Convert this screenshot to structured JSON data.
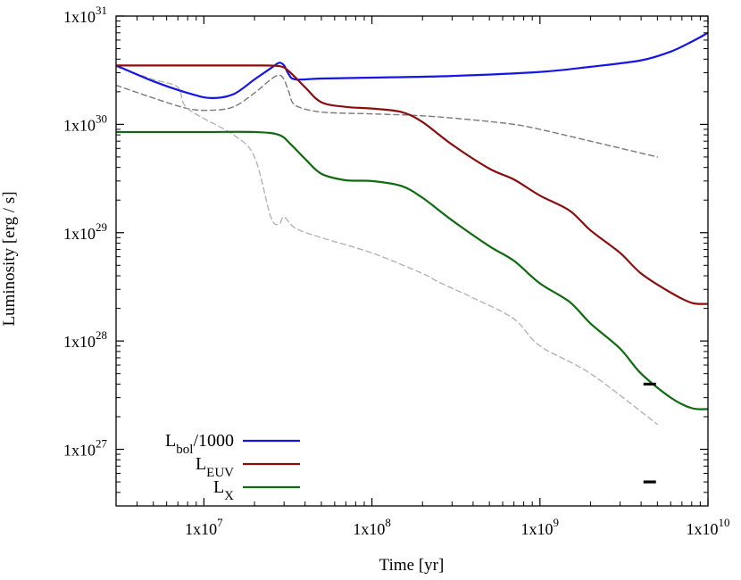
{
  "chart_data": {
    "type": "line",
    "title": "",
    "xlabel": "Time [yr]",
    "ylabel": "Luminosity [erg / s]",
    "xscale": "log",
    "yscale": "log",
    "xlim": [
      3000000,
      10000000000
    ],
    "ylim": [
      3e+26,
      1e+31
    ],
    "grid": false,
    "legend_position": "bottom-left",
    "x_ticks": [
      {
        "value": 10000000,
        "base": "1x10",
        "exp": "7"
      },
      {
        "value": 100000000,
        "base": "1x10",
        "exp": "8"
      },
      {
        "value": 1000000000,
        "base": "1x10",
        "exp": "9"
      },
      {
        "value": 10000000000,
        "base": "1x10",
        "exp": "10"
      }
    ],
    "y_ticks": [
      {
        "value": 1e+27,
        "base": "1x10",
        "exp": "27"
      },
      {
        "value": 1e+28,
        "base": "1x10",
        "exp": "28"
      },
      {
        "value": 1e+29,
        "base": "1x10",
        "exp": "29"
      },
      {
        "value": 1e+30,
        "base": "1x10",
        "exp": "30"
      },
      {
        "value": 1e+31,
        "base": "1x10",
        "exp": "31"
      }
    ],
    "legend": [
      {
        "main": "L",
        "sub": "bol",
        "suffix": "/1000",
        "color": "#1515e6"
      },
      {
        "main": "L",
        "sub": "EUV",
        "suffix": "",
        "color": "#8b0e0e"
      },
      {
        "main": "L",
        "sub": "X",
        "suffix": "",
        "color": "#0f6b0f"
      }
    ],
    "series": [
      {
        "name": "L_bol/1000",
        "color": "#1515e6",
        "style": "solid",
        "x": [
          3000000,
          5000000,
          8000000,
          11000000,
          15000000,
          20000000,
          25000000,
          28000000,
          30000000,
          32000000,
          35000000,
          50000000,
          100000000,
          300000000,
          1000000000,
          2000000000,
          4000000000,
          6000000000,
          8000000000,
          10000000000
        ],
        "y": [
          3.5e+30,
          2.5e+30,
          1.95e+30,
          1.75e+30,
          1.9e+30,
          2.6e+30,
          3.3e+30,
          3.7e+30,
          3.5e+30,
          2.9e+30,
          2.6e+30,
          2.65e+30,
          2.7e+30,
          2.8e+30,
          3.05e+30,
          3.4e+30,
          3.9e+30,
          4.7e+30,
          5.8e+30,
          7e+30
        ]
      },
      {
        "name": "L_EUV",
        "color": "#8b0e0e",
        "style": "solid",
        "x": [
          3000000,
          10000000,
          20000000,
          28000000,
          32000000,
          40000000,
          50000000,
          70000000,
          100000000,
          150000000,
          200000000,
          300000000,
          500000000,
          700000000,
          1000000000,
          1500000000,
          2000000000,
          3000000000,
          4000000000,
          6000000000,
          8000000000,
          10000000000
        ],
        "y": [
          3.5e+30,
          3.5e+30,
          3.5e+30,
          3.45e+30,
          3.1e+30,
          2.2e+30,
          1.6e+30,
          1.45e+30,
          1.4e+30,
          1.3e+30,
          1.05e+30,
          6.5e+29,
          3.9e+29,
          3.1e+29,
          2.2e+29,
          1.6e+29,
          1.05e+29,
          6.5e+28,
          4.2e+28,
          2.8e+28,
          2.25e+28,
          2.2e+28
        ]
      },
      {
        "name": "L_X",
        "color": "#0f6b0f",
        "style": "solid",
        "x": [
          3000000,
          10000000,
          20000000,
          28000000,
          33000000,
          40000000,
          50000000,
          70000000,
          100000000,
          150000000,
          200000000,
          300000000,
          500000000,
          700000000,
          1000000000,
          1500000000,
          2000000000,
          3000000000,
          4000000000,
          6000000000,
          8000000000,
          10000000000
        ],
        "y": [
          8.5e+29,
          8.5e+29,
          8.5e+29,
          8e+29,
          6.5e+29,
          4.8e+29,
          3.5e+29,
          3.05e+29,
          3e+29,
          2.7e+29,
          2.1e+29,
          1.3e+29,
          7.5e+28,
          5.5e+28,
          3.4e+28,
          2.3e+28,
          1.45e+28,
          8.5e+27,
          5e+27,
          3e+27,
          2.4e+27,
          2.35e+27
        ]
      },
      {
        "name": "track-1",
        "color": "#7a7a7a",
        "style": "dashed",
        "x": [
          3000000,
          5000000,
          8000000,
          11000000,
          15000000,
          20000000,
          25000000,
          28000000,
          30000000,
          32000000,
          35000000,
          50000000,
          100000000,
          200000000,
          400000000,
          700000000,
          1000000000,
          2000000000,
          5000000000
        ],
        "y": [
          2.3e+30,
          1.75e+30,
          1.4e+30,
          1.35e+30,
          1.45e+30,
          1.95e+30,
          2.6e+30,
          2.85e+30,
          2.6e+30,
          2e+30,
          1.5e+30,
          1.3e+30,
          1.25e+30,
          1.2e+30,
          1.1e+30,
          1e+30,
          9e+29,
          7e+29,
          5e+29
        ]
      },
      {
        "name": "track-2",
        "color": "#b4b4b4",
        "style": "dashed",
        "x": [
          3000000,
          5000000,
          7000000,
          8000000,
          15000000,
          20000000,
          25000000,
          28000000,
          30000000,
          35000000,
          50000000,
          100000000,
          200000000,
          250000000,
          400000000,
          700000000,
          1000000000,
          2000000000,
          5000000000
        ],
        "y": [
          3.4e+30,
          2.6e+30,
          2.2e+30,
          1.4e+30,
          8e+29,
          5e+29,
          1.4e+29,
          1.2e+29,
          1.4e+29,
          1.1e+29,
          9e+28,
          6.5e+28,
          4.2e+28,
          3.5e+28,
          2.5e+28,
          1.6e+28,
          9e+27,
          5e+27,
          1.7e+27
        ]
      }
    ],
    "markers": [
      {
        "x": 4500000000,
        "y": 4e+27,
        "style": "dash"
      },
      {
        "x": 4500000000,
        "y": 5e+26,
        "style": "dash"
      }
    ]
  }
}
